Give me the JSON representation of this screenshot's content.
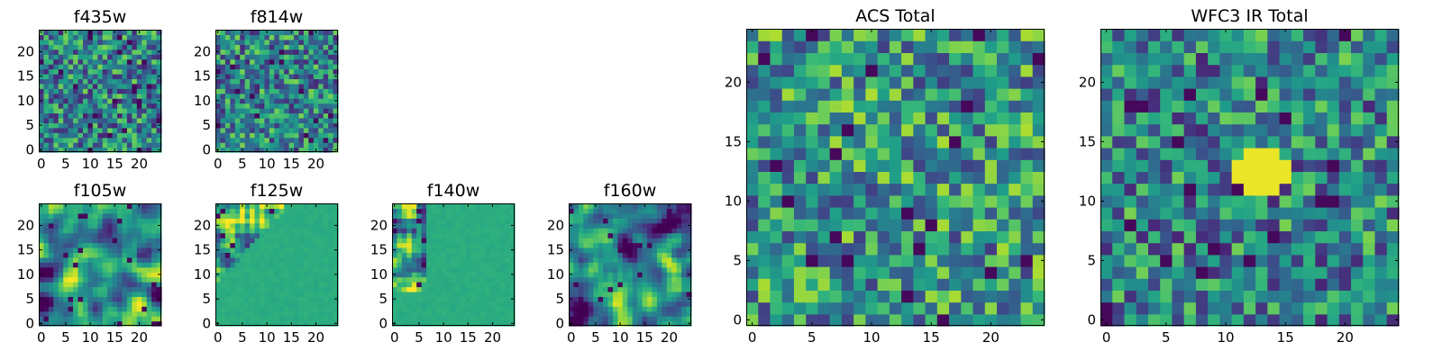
{
  "figure": {
    "colormap": "viridis",
    "colors": {
      "dark": "#440154",
      "mid": "#21918c",
      "bright": "#fde725",
      "frame": "#000000"
    }
  },
  "chart_data": [
    {
      "type": "heatmap",
      "title": "f435w",
      "grid": [
        25,
        25
      ],
      "ticks_x": [
        "0",
        "5",
        "10",
        "15",
        "20"
      ],
      "ticks_y": [
        "0",
        "5",
        "10",
        "15",
        "20"
      ],
      "texture": "noise",
      "xlim": [
        0,
        24
      ],
      "ylim": [
        0,
        24
      ]
    },
    {
      "type": "heatmap",
      "title": "f814w",
      "grid": [
        25,
        25
      ],
      "ticks_x": [
        "0",
        "5",
        "10",
        "15",
        "20"
      ],
      "ticks_y": [
        "0",
        "5",
        "10",
        "15",
        "20"
      ],
      "texture": "noise",
      "xlim": [
        0,
        24
      ],
      "ylim": [
        0,
        24
      ]
    },
    {
      "type": "heatmap",
      "title": "f105w",
      "grid": [
        25,
        25
      ],
      "ticks_x": [
        "0",
        "5",
        "10",
        "15",
        "20"
      ],
      "ticks_y": [
        "0",
        "5",
        "10",
        "15",
        "20"
      ],
      "texture": "blotchy",
      "xlim": [
        0,
        24
      ],
      "ylim": [
        0,
        24
      ]
    },
    {
      "type": "heatmap",
      "title": "f125w",
      "grid": [
        25,
        25
      ],
      "ticks_x": [
        "0",
        "5",
        "10",
        "15",
        "20"
      ],
      "ticks_y": [
        "0",
        "5",
        "10",
        "15",
        "20"
      ],
      "texture": "flat-upper-left-noise",
      "xlim": [
        0,
        24
      ],
      "ylim": [
        0,
        24
      ]
    },
    {
      "type": "heatmap",
      "title": "f140w",
      "grid": [
        25,
        25
      ],
      "ticks_x": [
        "0",
        "5",
        "10",
        "15",
        "20"
      ],
      "ticks_y": [
        "0",
        "5",
        "10",
        "15",
        "20"
      ],
      "texture": "flat-left-noise",
      "xlim": [
        0,
        24
      ],
      "ylim": [
        0,
        24
      ]
    },
    {
      "type": "heatmap",
      "title": "f160w",
      "grid": [
        25,
        25
      ],
      "ticks_x": [
        "0",
        "5",
        "10",
        "15",
        "20"
      ],
      "ticks_y": [
        "0",
        "5",
        "10",
        "15",
        "20"
      ],
      "texture": "blotchy",
      "xlim": [
        0,
        24
      ],
      "ylim": [
        0,
        24
      ]
    },
    {
      "type": "heatmap",
      "title": "ACS Total",
      "grid": [
        25,
        25
      ],
      "ticks_x": [
        "0",
        "5",
        "10",
        "15",
        "20"
      ],
      "ticks_y": [
        "0",
        "5",
        "10",
        "15",
        "20"
      ],
      "texture": "noise-bright",
      "xlim": [
        0,
        24
      ],
      "ylim": [
        0,
        24
      ]
    },
    {
      "type": "heatmap",
      "title": "WFC3 IR Total",
      "grid": [
        25,
        25
      ],
      "ticks_x": [
        "0",
        "5",
        "10",
        "15",
        "20"
      ],
      "ticks_y": [
        "0",
        "5",
        "10",
        "15",
        "20"
      ],
      "texture": "noise-center-bright",
      "xlim": [
        0,
        24
      ],
      "ylim": [
        0,
        24
      ]
    }
  ]
}
